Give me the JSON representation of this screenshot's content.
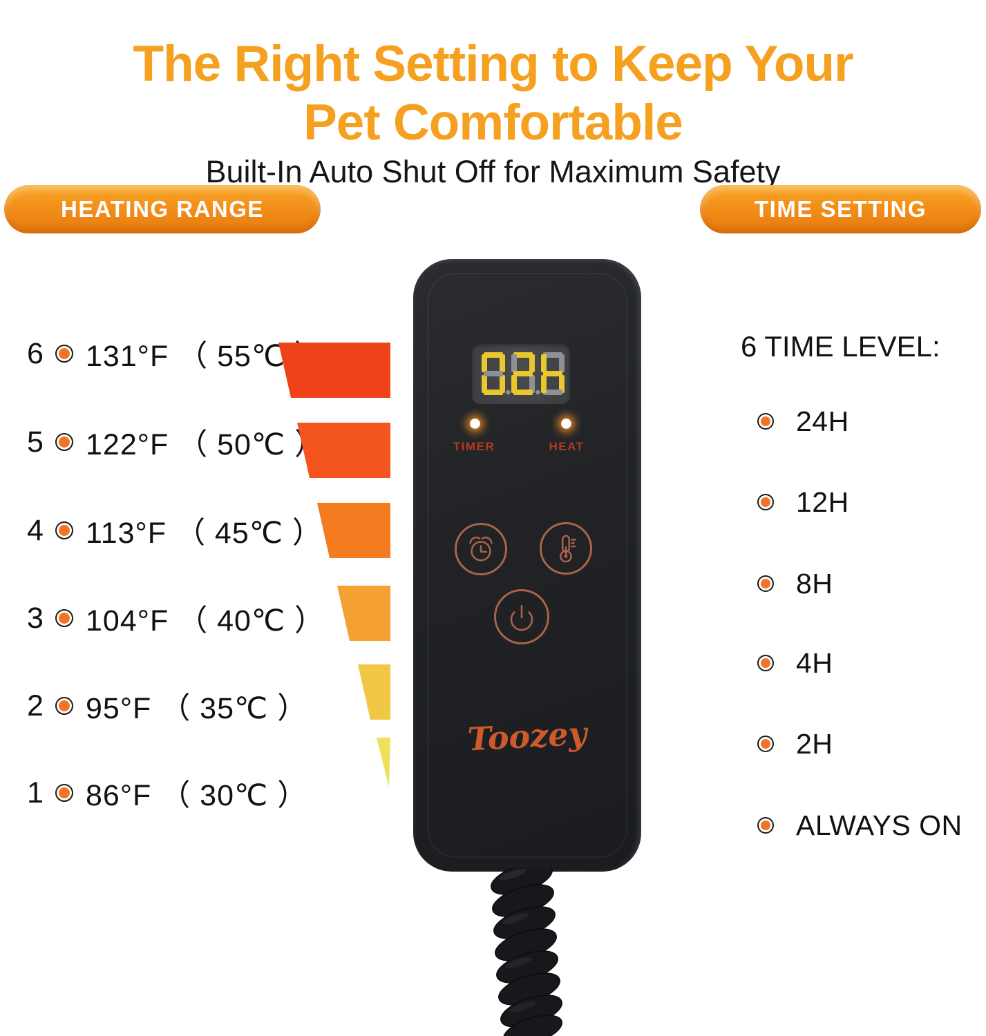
{
  "header": {
    "title_line1": "The Right Setting to Keep Your",
    "title_line2": "Pet Comfortable",
    "subtitle": "Built-In Auto Shut Off for Maximum Safety"
  },
  "badges": {
    "heating": "HEATING RANGE",
    "time": "TIME SETTING"
  },
  "heating_range": {
    "items": [
      {
        "level": "6",
        "label": "131°F （ 55℃ ）"
      },
      {
        "level": "5",
        "label": "122°F （ 50℃ ）"
      },
      {
        "level": "4",
        "label": "113°F （ 45℃ ）"
      },
      {
        "level": "3",
        "label": "104°F （ 40℃ ）"
      },
      {
        "level": "2",
        "label": "95°F （ 35℃ ）"
      },
      {
        "level": "1",
        "label": "86°F （ 30℃ ）"
      }
    ],
    "bars": [
      {
        "color": "#EE4318"
      },
      {
        "color": "#F4551E"
      },
      {
        "color": "#F47B20"
      },
      {
        "color": "#F5A032"
      },
      {
        "color": "#F0C845"
      },
      {
        "color": "#EDE15B"
      }
    ]
  },
  "time_setting": {
    "heading": "6 TIME LEVEL:",
    "items": [
      "24H",
      "12H",
      "8H",
      "4H",
      "2H",
      "ALWAYS ON"
    ]
  },
  "controller": {
    "display_value": "02H",
    "digits": [
      {
        "char": "0",
        "segs": "abcdef",
        "dot": true
      },
      {
        "char": "2",
        "segs": "abdeg",
        "dot": true
      },
      {
        "char": "H",
        "segs": "cefg",
        "dot": false
      }
    ],
    "timer_label": "TIMER",
    "heat_label": "HEAT",
    "brand": "Toozey"
  },
  "colors": {
    "title_orange": "#F5A01F",
    "badge_top": "#F7A524",
    "badge_bottom": "#E8790E",
    "bullet_orange": "#F47426",
    "segment_lit": "#EBC72E",
    "segment_unlit": "#8E9095",
    "display_panel": "#414449",
    "led_glow": "#FF9123",
    "button_ring": "#A8644A",
    "indicator_label_red": "#B03A1E",
    "brand_orange": "#CE5A2C",
    "body_black": "#212326"
  }
}
